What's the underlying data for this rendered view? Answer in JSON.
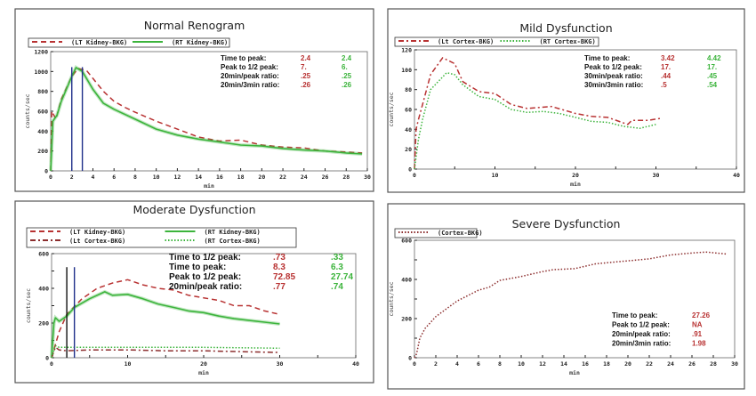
{
  "colors": {
    "lt": "#b83232",
    "rt": "#3cb43c",
    "cortex": "#8c2e2e",
    "marker_a": "#1f2f8a",
    "marker_b": "#111111"
  },
  "chart_data": [
    {
      "type": "line",
      "title": "Normal Renogram",
      "xlabel": "min",
      "ylabel": "counts/sec",
      "xlim": [
        0,
        30
      ],
      "ylim": [
        0,
        1200
      ],
      "xticks": [
        "0",
        "2",
        "4",
        "6",
        "8",
        "10",
        "12",
        "14",
        "16",
        "18",
        "20",
        "22",
        "24",
        "26",
        "28",
        "30"
      ],
      "yticks": [
        "0",
        "200",
        "400",
        "600",
        "800",
        "1000",
        "1200"
      ],
      "markers": [
        2,
        3
      ],
      "legend": [
        "(LT Kidney-BKG)",
        "(RT Kidney-BKG)"
      ],
      "series": [
        {
          "name": "(LT Kidney-BKG)",
          "style": "dash",
          "color": "lt",
          "points": [
            [
              0,
              0
            ],
            [
              0.1,
              600
            ],
            [
              0.5,
              520
            ],
            [
              1,
              720
            ],
            [
              2,
              950
            ],
            [
              2.6,
              1030
            ],
            [
              3.4,
              1010
            ],
            [
              4,
              930
            ],
            [
              5,
              800
            ],
            [
              6,
              700
            ],
            [
              7,
              640
            ],
            [
              8,
              590
            ],
            [
              10,
              500
            ],
            [
              12,
              420
            ],
            [
              14,
              340
            ],
            [
              16,
              300
            ],
            [
              18,
              310
            ],
            [
              20,
              260
            ],
            [
              22,
              240
            ],
            [
              24,
              230
            ],
            [
              26,
              200
            ],
            [
              28,
              190
            ],
            [
              29.5,
              180
            ]
          ]
        },
        {
          "name": "(RT Kidney-BKG)",
          "style": "solid",
          "color": "rt",
          "points": [
            [
              0,
              0
            ],
            [
              0.2,
              500
            ],
            [
              0.6,
              560
            ],
            [
              1,
              700
            ],
            [
              2,
              950
            ],
            [
              2.4,
              1040
            ],
            [
              3,
              1000
            ],
            [
              4,
              820
            ],
            [
              5,
              680
            ],
            [
              6,
              620
            ],
            [
              8,
              520
            ],
            [
              10,
              420
            ],
            [
              12,
              360
            ],
            [
              14,
              320
            ],
            [
              16,
              290
            ],
            [
              18,
              260
            ],
            [
              20,
              250
            ],
            [
              22,
              225
            ],
            [
              24,
              210
            ],
            [
              26,
              200
            ],
            [
              28,
              180
            ],
            [
              29.5,
              170
            ]
          ]
        }
      ],
      "stats": [
        {
          "label": "Time to peak:",
          "values": [
            "2.4",
            "2.4"
          ]
        },
        {
          "label": "Peak to 1/2 peak:",
          "values": [
            "7.",
            "6."
          ]
        },
        {
          "label": "20min/peak ratio:",
          "values": [
            ".25",
            ".25"
          ]
        },
        {
          "label": "20min/3min ratio:",
          "values": [
            ".26",
            ".26"
          ]
        }
      ]
    },
    {
      "type": "line",
      "title": "Mild Dysfunction",
      "xlabel": "min",
      "ylabel": "counts/sec",
      "xlim": [
        0,
        40
      ],
      "ylim": [
        0,
        120
      ],
      "xticks": [
        "0",
        "10",
        "20",
        "30",
        "40"
      ],
      "yticks": [
        "0",
        "20",
        "40",
        "60",
        "80",
        "100",
        "120"
      ],
      "markers": [],
      "legend": [
        "(Lt Cortex-BKG)",
        "(RT Cortex-BKG)"
      ],
      "series": [
        {
          "name": "(Lt Cortex-BKG)",
          "style": "dashdot",
          "color": "lt",
          "points": [
            [
              0,
              0
            ],
            [
              0.2,
              40
            ],
            [
              0.5,
              50
            ],
            [
              1,
              65
            ],
            [
              2,
              95
            ],
            [
              3.5,
              112
            ],
            [
              5,
              106
            ],
            [
              6,
              88
            ],
            [
              8,
              78
            ],
            [
              10,
              76
            ],
            [
              12,
              65
            ],
            [
              14,
              61
            ],
            [
              17,
              63
            ],
            [
              20,
              56
            ],
            [
              22,
              53
            ],
            [
              24,
              52
            ],
            [
              26.5,
              45
            ],
            [
              27,
              49
            ],
            [
              29,
              49
            ],
            [
              30.5,
              51
            ]
          ]
        },
        {
          "name": "(RT Cortex-BKG)",
          "style": "dot",
          "color": "rt",
          "points": [
            [
              0,
              0
            ],
            [
              0.5,
              30
            ],
            [
              1,
              50
            ],
            [
              2,
              80
            ],
            [
              4,
              97
            ],
            [
              5,
              95
            ],
            [
              6,
              85
            ],
            [
              8,
              73
            ],
            [
              10,
              70
            ],
            [
              12,
              60
            ],
            [
              14,
              57
            ],
            [
              16,
              58
            ],
            [
              18,
              56
            ],
            [
              20,
              52
            ],
            [
              22,
              48
            ],
            [
              24,
              47
            ],
            [
              26,
              43
            ],
            [
              28,
              41
            ],
            [
              30,
              45
            ]
          ]
        }
      ],
      "stats": [
        {
          "label": "Time to peak:",
          "values": [
            "3.42",
            "4.42"
          ]
        },
        {
          "label": "Peak to 1/2 peak:",
          "values": [
            "17.",
            "17."
          ]
        },
        {
          "label": "30min/peak ratio:",
          "values": [
            ".44",
            ".45"
          ]
        },
        {
          "label": "30min/3min ratio:",
          "values": [
            ".5",
            ".54"
          ]
        }
      ]
    },
    {
      "type": "line",
      "title": "Moderate Dysfunction",
      "xlabel": "min",
      "ylabel": "counts/sec",
      "xlim": [
        0,
        40
      ],
      "ylim": [
        0,
        600
      ],
      "xticks": [
        "0",
        "10",
        "20",
        "30",
        "40"
      ],
      "yticks": [
        "0",
        "200",
        "400",
        "600"
      ],
      "markers": [
        2,
        3
      ],
      "legend": [
        "(LT Kidney-BKG)",
        "(RT Kidney-BKG)",
        "(Lt Cortex-BKG)",
        "(RT Cortex-BKG)"
      ],
      "series": [
        {
          "name": "(LT Kidney-BKG)",
          "style": "dash",
          "color": "lt",
          "points": [
            [
              0,
              0
            ],
            [
              1,
              150
            ],
            [
              2,
              250
            ],
            [
              4,
              340
            ],
            [
              6,
              400
            ],
            [
              8,
              430
            ],
            [
              10,
              450
            ],
            [
              12,
              420
            ],
            [
              14,
              400
            ],
            [
              16,
              390
            ],
            [
              18,
              360
            ],
            [
              20,
              345
            ],
            [
              22,
              330
            ],
            [
              24,
              300
            ],
            [
              26,
              300
            ],
            [
              28,
              270
            ],
            [
              30,
              250
            ]
          ]
        },
        {
          "name": "(RT Kidney-BKG)",
          "style": "solid",
          "color": "rt",
          "points": [
            [
              0,
              0
            ],
            [
              0.3,
              200
            ],
            [
              0.5,
              230
            ],
            [
              1,
              210
            ],
            [
              2,
              240
            ],
            [
              3,
              290
            ],
            [
              5,
              340
            ],
            [
              7,
              380
            ],
            [
              8,
              360
            ],
            [
              10,
              365
            ],
            [
              12,
              340
            ],
            [
              14,
              310
            ],
            [
              16,
              290
            ],
            [
              18,
              270
            ],
            [
              20,
              260
            ],
            [
              22,
              240
            ],
            [
              24,
              225
            ],
            [
              26,
              215
            ],
            [
              28,
              205
            ],
            [
              30,
              195
            ]
          ]
        },
        {
          "name": "(Lt Cortex-BKG)",
          "style": "dashdot",
          "color": "cortex",
          "points": [
            [
              0,
              0
            ],
            [
              0.5,
              60
            ],
            [
              1,
              45
            ],
            [
              2,
              40
            ],
            [
              5,
              45
            ],
            [
              10,
              45
            ],
            [
              15,
              40
            ],
            [
              20,
              40
            ],
            [
              25,
              35
            ],
            [
              30,
              30
            ]
          ]
        },
        {
          "name": "(RT Cortex-BKG)",
          "style": "dot",
          "color": "rt",
          "points": [
            [
              0,
              0
            ],
            [
              0.5,
              70
            ],
            [
              1,
              60
            ],
            [
              3,
              60
            ],
            [
              10,
              60
            ],
            [
              20,
              60
            ],
            [
              30,
              55
            ]
          ]
        }
      ],
      "stats": [
        {
          "label": "Time to 1/2 peak:",
          "values": [
            ".73",
            ".33"
          ]
        },
        {
          "label": "Time to peak:",
          "values": [
            "8.3",
            "6.3"
          ]
        },
        {
          "label": "Peak to 1/2 peak:",
          "values": [
            "72.85",
            "27.74"
          ]
        },
        {
          "label": "20min/peak ratio:",
          "values": [
            ".77",
            ".74"
          ]
        }
      ]
    },
    {
      "type": "line",
      "title": "Severe Dysfunction",
      "xlabel": "min",
      "ylabel": "counts/sec",
      "xlim": [
        0,
        30
      ],
      "ylim": [
        0,
        600
      ],
      "xticks": [
        "0",
        "2",
        "4",
        "6",
        "8",
        "10",
        "12",
        "14",
        "16",
        "18",
        "20",
        "22",
        "24",
        "26",
        "28",
        "30"
      ],
      "yticks": [
        "0",
        "200",
        "400",
        "600"
      ],
      "markers": [],
      "legend": [
        "(Cortex-BKG)"
      ],
      "series": [
        {
          "name": "(Cortex-BKG)",
          "style": "dot",
          "color": "cortex",
          "points": [
            [
              0,
              0
            ],
            [
              0.2,
              20
            ],
            [
              0.5,
              100
            ],
            [
              1,
              150
            ],
            [
              2,
              210
            ],
            [
              4,
              290
            ],
            [
              6,
              345
            ],
            [
              7,
              360
            ],
            [
              8,
              395
            ],
            [
              10,
              415
            ],
            [
              12,
              440
            ],
            [
              13,
              450
            ],
            [
              15,
              455
            ],
            [
              17,
              480
            ],
            [
              20,
              495
            ],
            [
              22,
              505
            ],
            [
              24,
              525
            ],
            [
              26,
              535
            ],
            [
              27.3,
              540
            ],
            [
              29.2,
              530
            ]
          ]
        }
      ],
      "stats": [
        {
          "label": "Time to peak:",
          "values": [
            "27.26"
          ]
        },
        {
          "label": "Peak to 1/2 peak:",
          "values": [
            "NA"
          ]
        },
        {
          "label": "20min/peak ratio:",
          "values": [
            ".91"
          ]
        },
        {
          "label": "20min/3min ratio:",
          "values": [
            "1.98"
          ]
        }
      ]
    }
  ]
}
